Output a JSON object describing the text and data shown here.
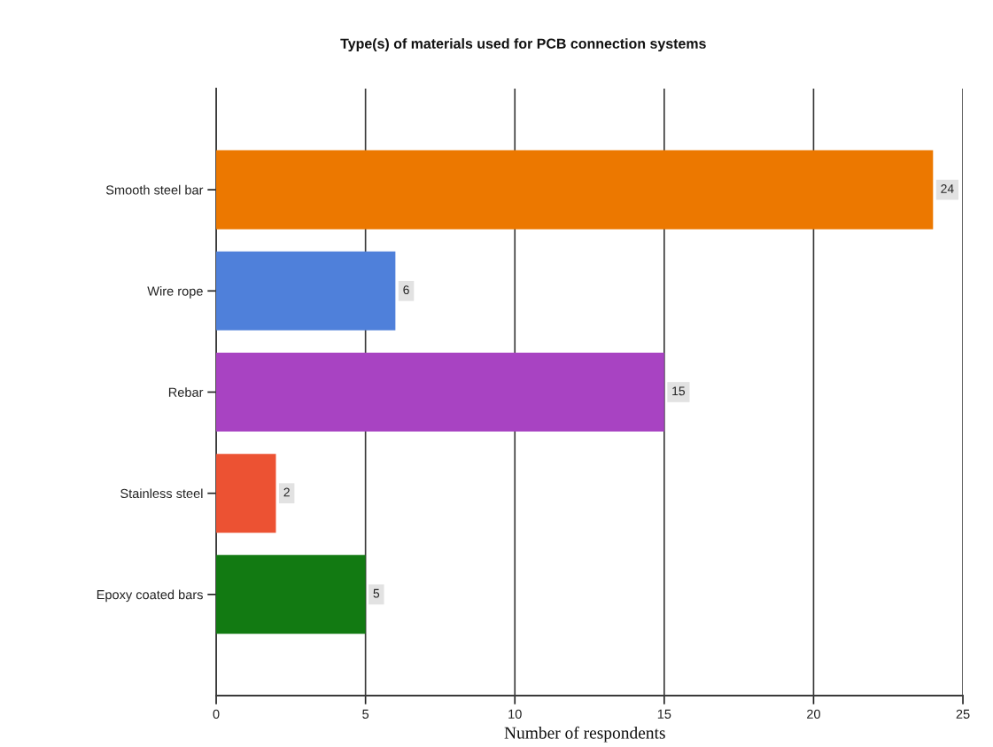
{
  "chart_data": {
    "type": "bar",
    "orientation": "horizontal",
    "title": "Type(s) of materials used for PCB connection systems",
    "xlabel": "Number of respondents",
    "categories": [
      "Smooth steel bar",
      "Wire rope",
      "Rebar",
      "Stainless steel",
      "Epoxy coated bars"
    ],
    "values": [
      24,
      6,
      15,
      2,
      5
    ],
    "colors": [
      "#ec7800",
      "#4f80da",
      "#a843c2",
      "#ec5233",
      "#127a12"
    ],
    "xlim": [
      0,
      25
    ],
    "xticks": [
      0,
      5,
      10,
      15,
      20,
      25
    ],
    "grid": "x",
    "data_labels": true,
    "legend": false
  }
}
